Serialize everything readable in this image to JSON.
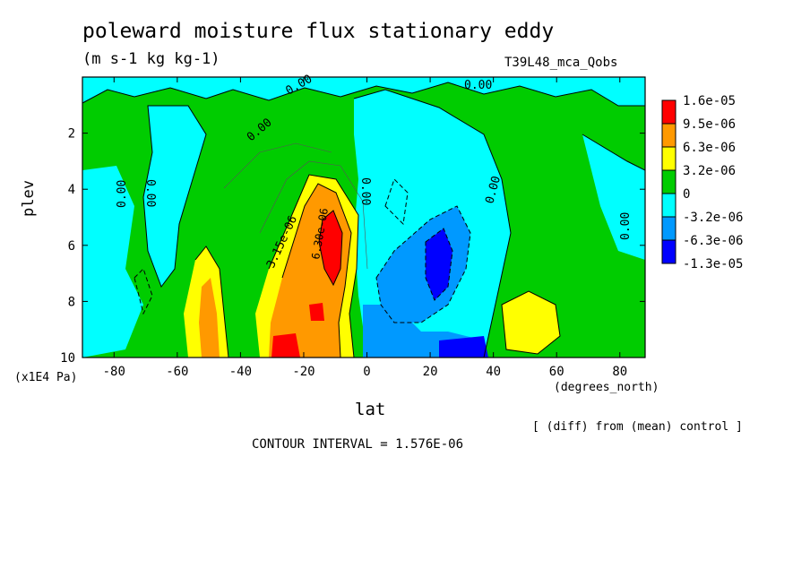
{
  "chart_data": {
    "type": "heatmap",
    "title": "poleward moisture flux stationary eddy",
    "units": "(m s-1 kg kg-1)",
    "run_label": "T39L48_mca_Qobs",
    "xlabel": "lat",
    "xunit": "(degrees_north)",
    "ylabel": "plev",
    "yunit": "(x1E4 Pa)",
    "xlim": [
      -90,
      88
    ],
    "ylim": [
      10,
      0
    ],
    "x_ticks": [
      -80,
      -60,
      -40,
      -20,
      0,
      20,
      40,
      60,
      80
    ],
    "y_ticks": [
      2,
      4,
      6,
      8,
      10
    ],
    "note": "[ (diff) from (mean) control ]",
    "contour_interval_text": "CONTOUR INTERVAL = 1.576E-06",
    "colorbar": {
      "labels": [
        "1.6e-05",
        "9.5e-06",
        "6.3e-06",
        "3.2e-06",
        "0",
        "-3.2e-06",
        "-6.3e-06",
        "-1.3e-05"
      ],
      "colors": [
        "#ff0000",
        "#ff9900",
        "#ffff00",
        "#00cc00",
        "#00ffff",
        "#0099ff",
        "#0000ff"
      ]
    },
    "contour_labels": [
      "0.00",
      "0.00",
      "0.00",
      "0.00",
      "0.00",
      "0.00",
      "0.00",
      "0.00",
      "3.15e-06",
      "6.30e-06"
    ],
    "regions": [
      {
        "level": "green",
        "desc": "background"
      },
      {
        "level": "cyan",
        "lat": [
          -75,
          -60
        ],
        "plev": [
          1,
          10
        ]
      },
      {
        "level": "cyan",
        "lat": [
          0,
          58
        ],
        "plev": [
          1,
          10
        ]
      },
      {
        "level": "cyan",
        "lat": [
          -90,
          88
        ],
        "plev": [
          0.2,
          0.8
        ]
      },
      {
        "level": "blue",
        "lat": [
          15,
          35
        ],
        "plev": [
          5.5,
          8.5
        ]
      },
      {
        "level": "dark-blue",
        "lat": [
          20,
          40
        ],
        "plev": [
          9,
          10
        ]
      },
      {
        "level": "yellow",
        "lat": [
          -55,
          -45
        ],
        "plev": [
          6.5,
          10
        ]
      },
      {
        "level": "yellow",
        "lat": [
          -35,
          -5
        ],
        "plev": [
          4,
          10
        ]
      },
      {
        "level": "orange",
        "lat": [
          -30,
          -5
        ],
        "plev": [
          4.5,
          10
        ]
      },
      {
        "level": "red",
        "lat": [
          -15,
          -8
        ],
        "plev": [
          5,
          7.8
        ]
      },
      {
        "level": "red",
        "lat": [
          -28,
          -22
        ],
        "plev": [
          9,
          10
        ]
      },
      {
        "level": "yellow",
        "lat": [
          50,
          62
        ],
        "plev": [
          7.8,
          9.5
        ]
      }
    ]
  }
}
